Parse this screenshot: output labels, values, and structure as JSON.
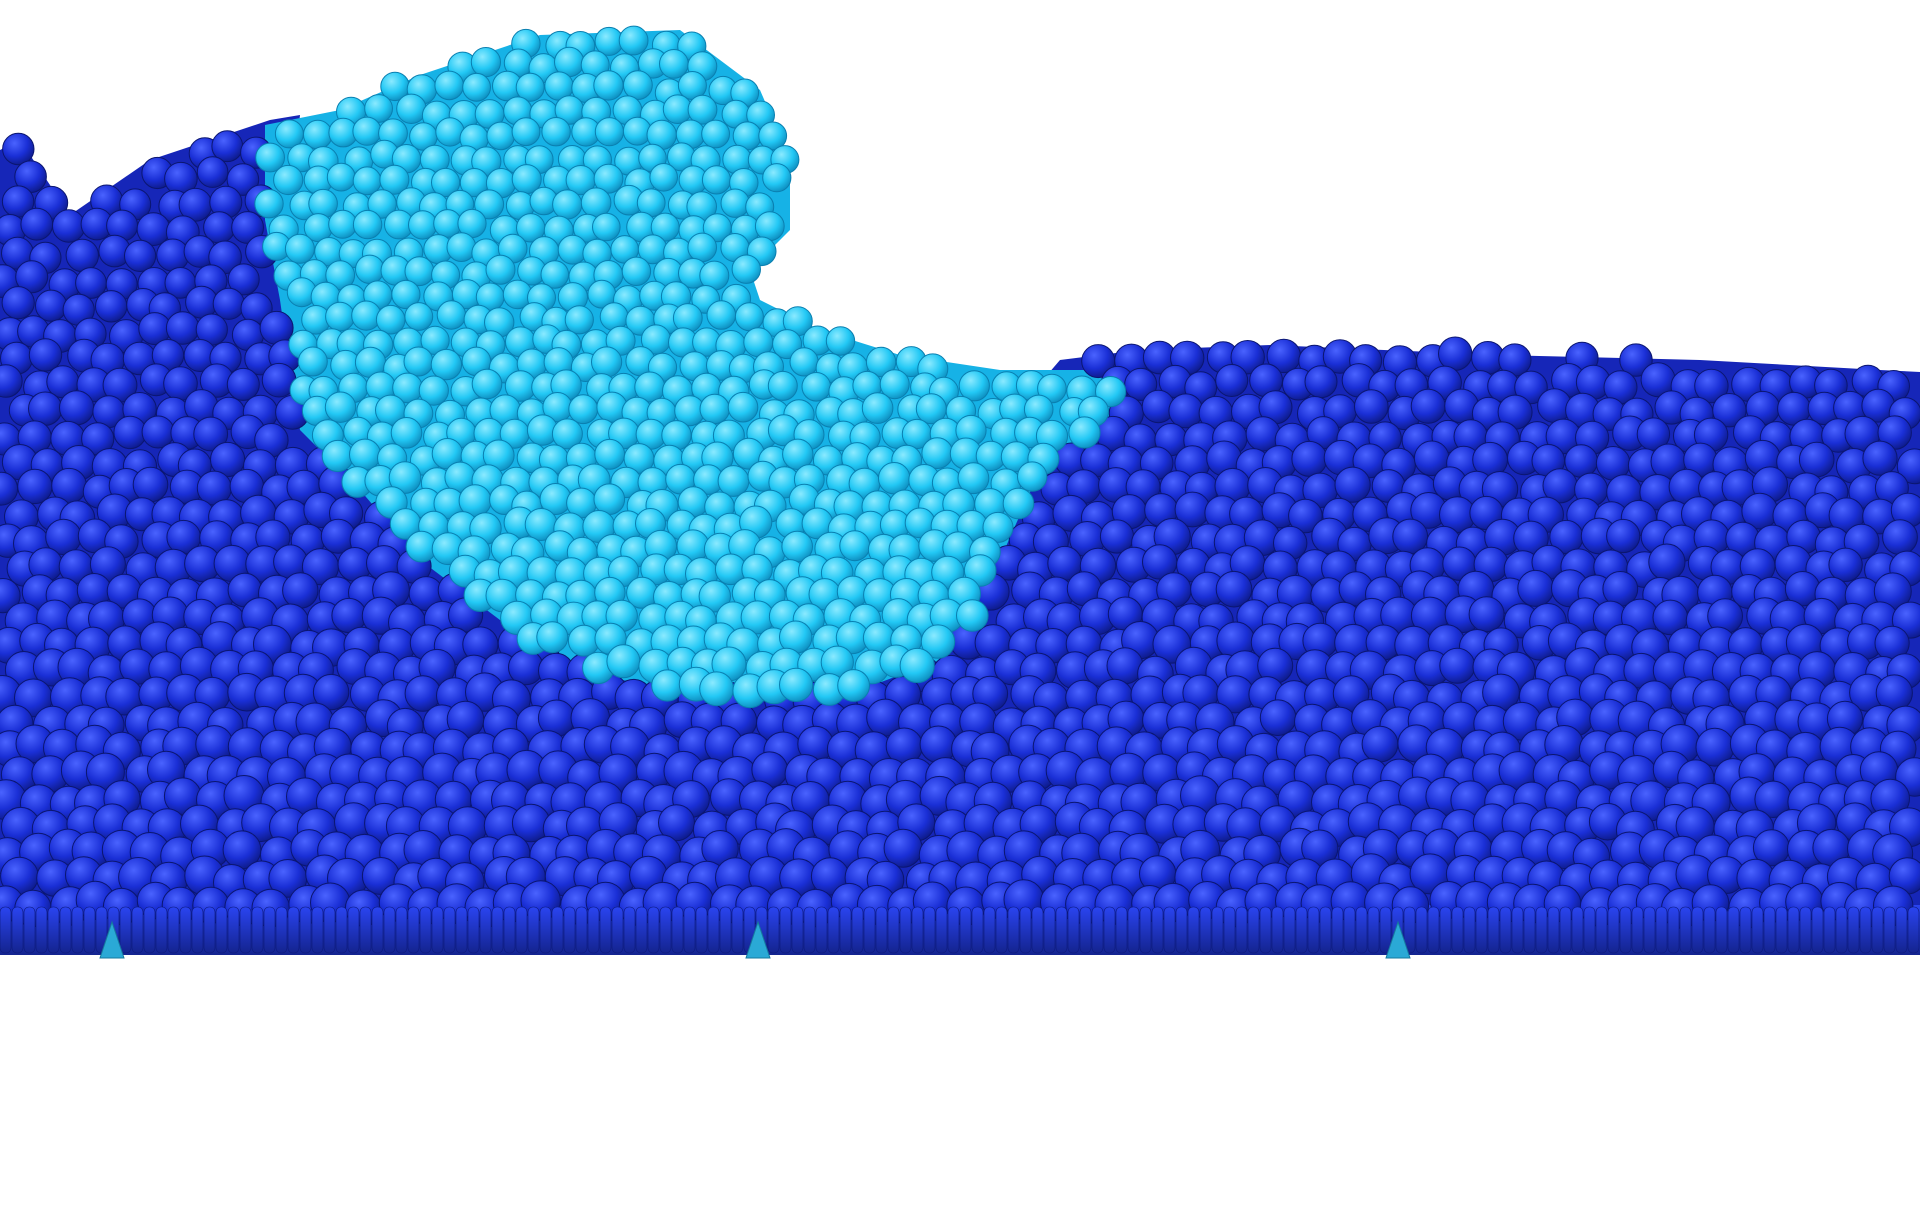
{
  "scene": {
    "subject": "particle-fluid-wave",
    "background_color": "#ffffff",
    "colors": {
      "bulk_fluid": "#1a2fd6",
      "bulk_fluid_dark": "#0f1f9e",
      "bulk_fluid_light": "#3a52ff",
      "wave_crest": "#22c8f5",
      "wave_crest_light": "#7fe6ff",
      "wave_crest_dark": "#0f98c8",
      "floor_row": "#1b31c9",
      "floor_marker": "#2aa9d6"
    },
    "floor_marker_count": 3
  }
}
